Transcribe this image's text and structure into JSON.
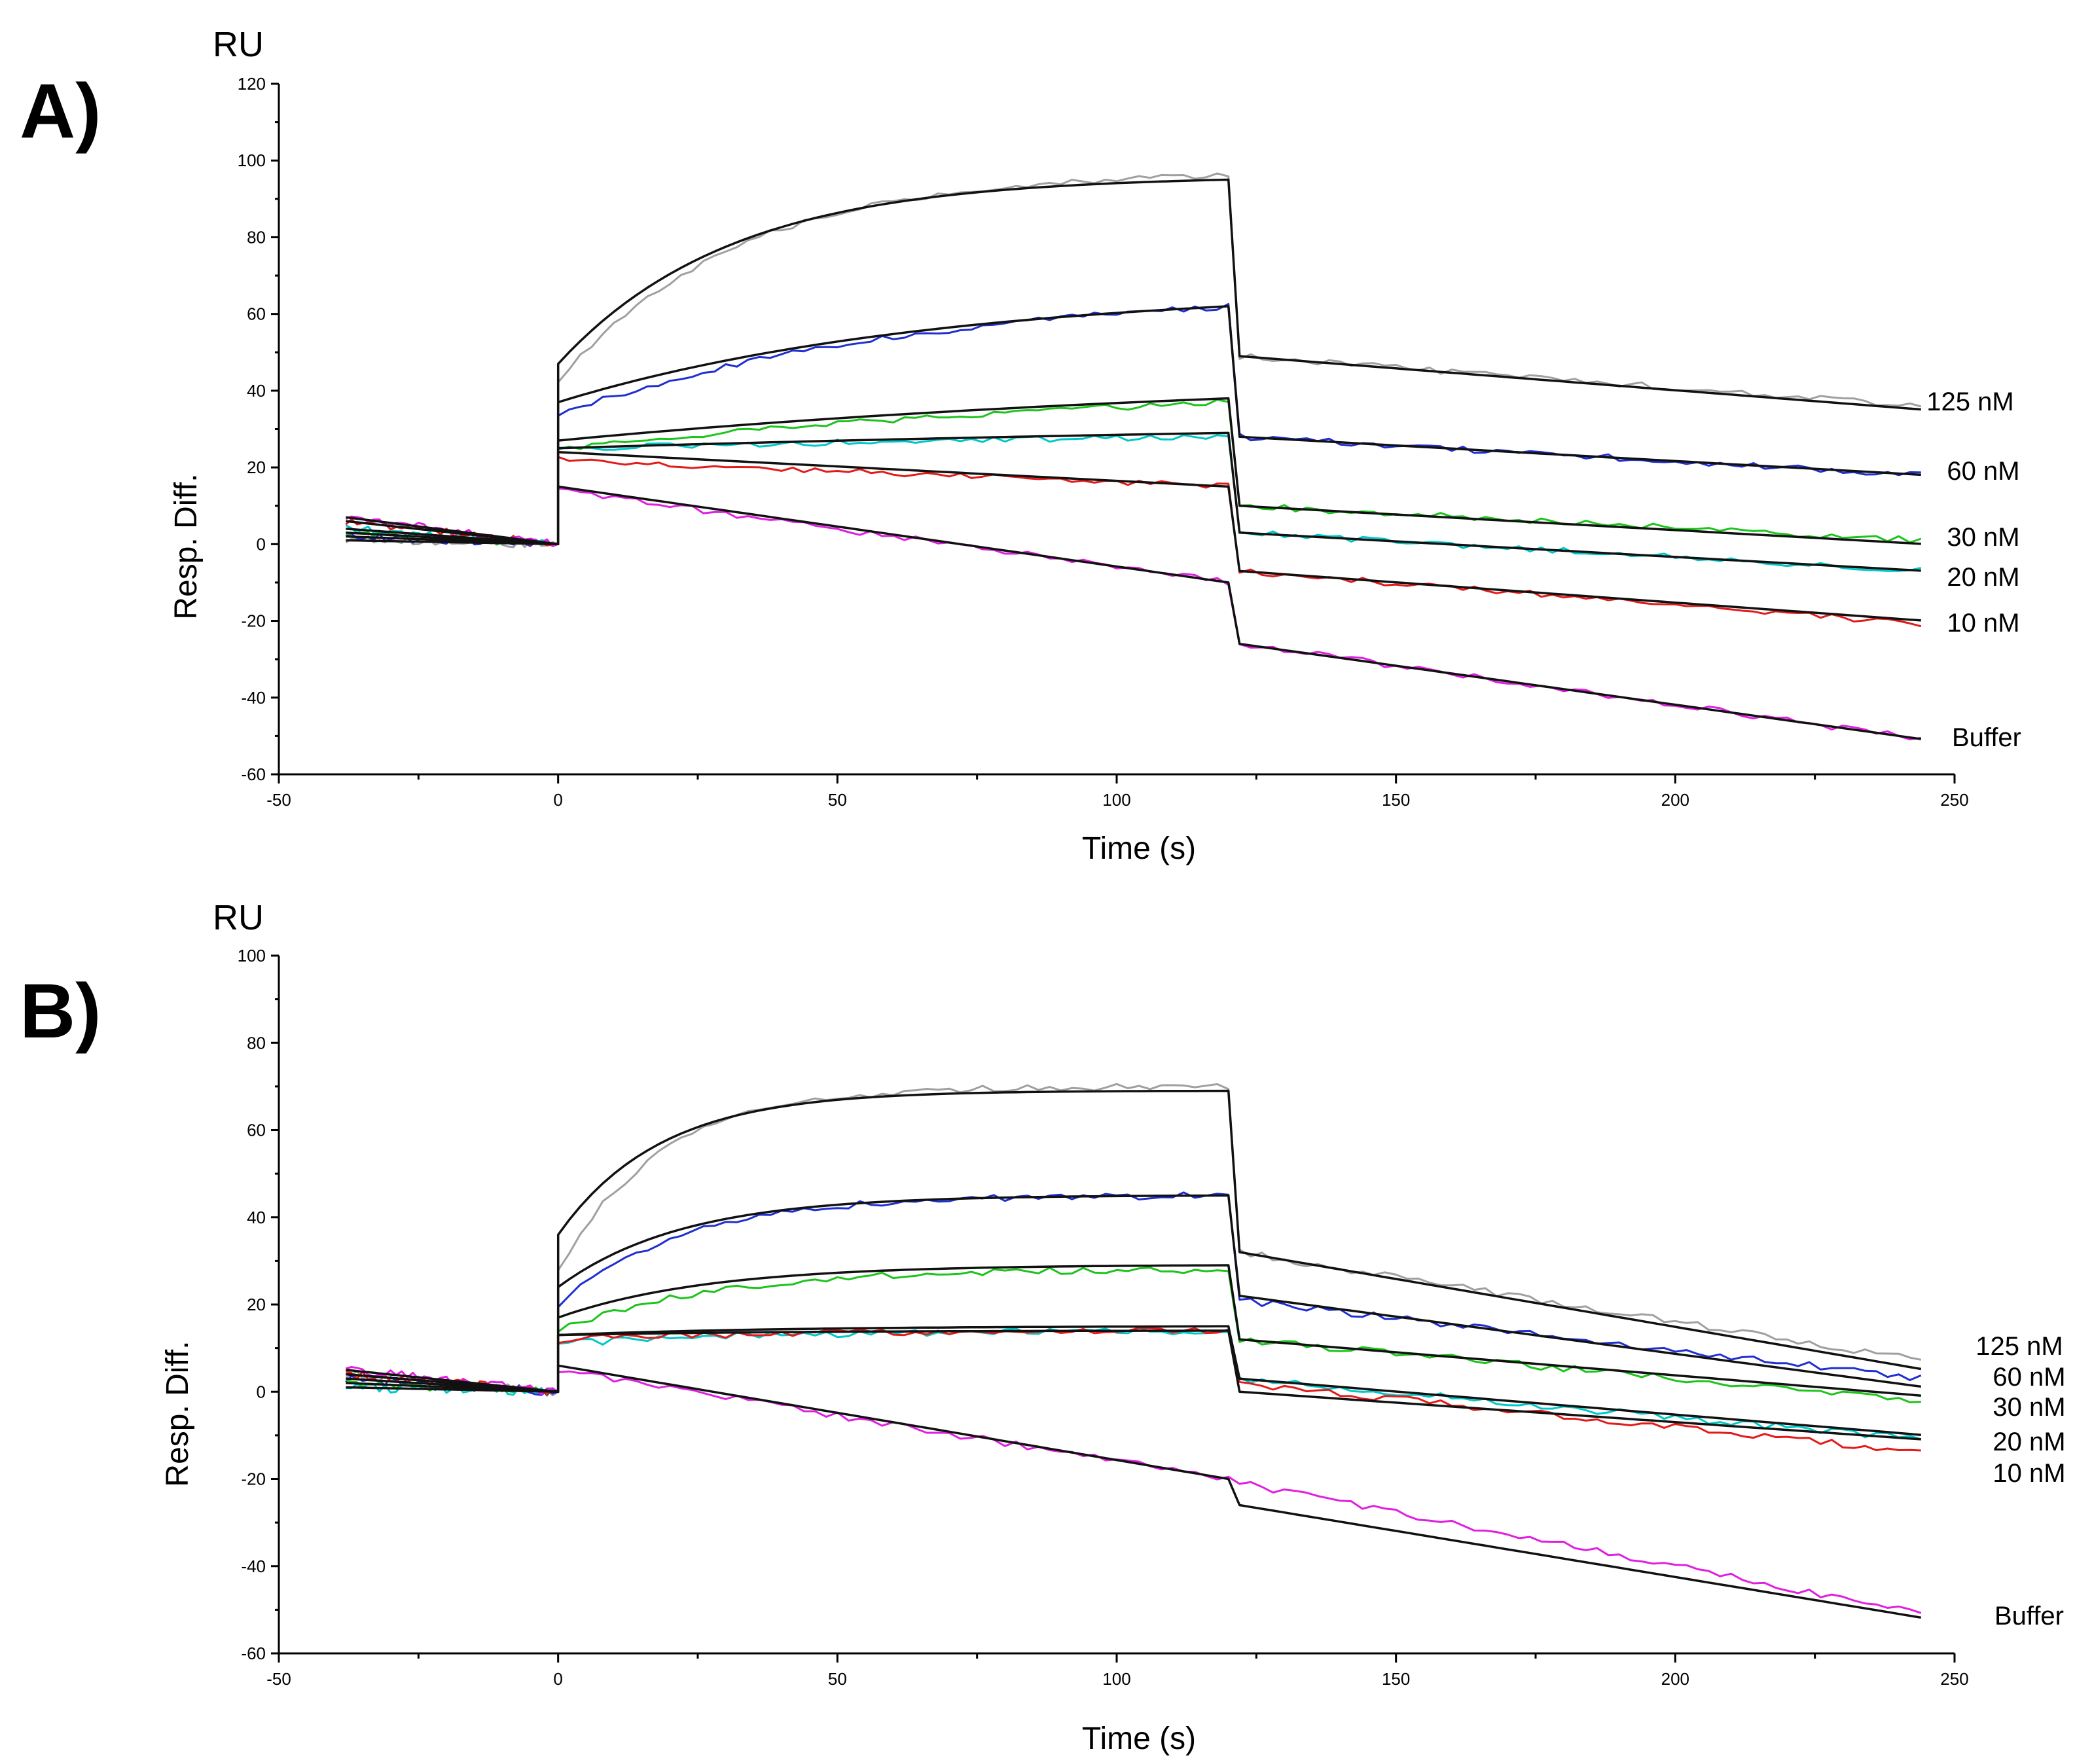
{
  "chart_data": [
    {
      "type": "line",
      "panel": "A)",
      "unit": "RU",
      "xlabel": "Time (s)",
      "ylabel": "Resp. Diff.",
      "xlim": [
        -50,
        250
      ],
      "ylim": [
        -60,
        120
      ],
      "xticks": [
        -50,
        0,
        50,
        100,
        150,
        200,
        250
      ],
      "yticks": [
        120,
        100,
        80,
        60,
        40,
        20,
        0,
        -20,
        -40,
        -60
      ],
      "injection_start": 0,
      "injection_end": 120,
      "series": [
        {
          "name": "125 nM",
          "color": "#a0a0a0",
          "baseline": 0,
          "data_jump": 42,
          "data_end": 96,
          "curve": 1.3,
          "dis_jump": 49,
          "dis_end": 36,
          "fit_jump": 47,
          "fit_end": 95,
          "fit_dis_start": 49,
          "fit_dis_end": 35,
          "pre_start": 1
        },
        {
          "name": "60 nM",
          "color": "#1f2fd0",
          "baseline": 0,
          "data_jump": 34,
          "data_end": 62,
          "curve": 0.6,
          "dis_jump": 28,
          "dis_end": 18,
          "fit_jump": 37,
          "fit_end": 62,
          "fit_dis_start": 28,
          "fit_dis_end": 18,
          "pre_start": 2
        },
        {
          "name": "30 nM",
          "color": "#1cc41c",
          "baseline": 0,
          "data_jump": 25,
          "data_end": 37,
          "curve": 0.3,
          "dis_jump": 10,
          "dis_end": 1,
          "fit_jump": 27,
          "fit_end": 38,
          "fit_dis_start": 10,
          "fit_dis_end": 0,
          "pre_start": 3
        },
        {
          "name": "20 nM",
          "color": "#00c8c8",
          "baseline": 0,
          "data_jump": 25,
          "data_end": 28,
          "curve": 0.2,
          "dis_jump": 3,
          "dis_end": -7,
          "fit_jump": 25,
          "fit_end": 29,
          "fit_dis_start": 3,
          "fit_dis_end": -7,
          "pre_start": 4
        },
        {
          "name": "10 nM",
          "color": "#e41a1a",
          "baseline": 0,
          "data_jump": 22,
          "data_end": 15,
          "curve": 0.0,
          "dis_jump": -7,
          "dis_end": -21,
          "fit_jump": 24,
          "fit_end": 15,
          "fit_dis_start": -7,
          "fit_dis_end": -20,
          "pre_start": 6
        },
        {
          "name": "Buffer",
          "color": "#e020e0",
          "baseline": 0,
          "data_jump": 14,
          "data_end": -10,
          "curve": 0.0,
          "dis_jump": -26,
          "dis_end": -51,
          "fit_jump": 15,
          "fit_end": -10,
          "fit_dis_start": -26,
          "fit_dis_end": -51,
          "pre_start": 7
        }
      ]
    },
    {
      "type": "line",
      "panel": "B)",
      "unit": "RU",
      "xlabel": "Time (s)",
      "ylabel": "Resp. Diff.",
      "xlim": [
        -50,
        250
      ],
      "ylim": [
        -60,
        100
      ],
      "xticks": [
        -50,
        0,
        50,
        100,
        150,
        200,
        250
      ],
      "yticks": [
        100,
        80,
        60,
        40,
        20,
        0,
        -20,
        -40,
        -60
      ],
      "injection_start": 0,
      "injection_end": 120,
      "series": [
        {
          "name": "125 nM",
          "color": "#a0a0a0",
          "baseline": 0,
          "data_jump": 28,
          "data_end": 70,
          "curve": 2.2,
          "dis_jump": 32,
          "dis_end": 7,
          "fit_jump": 36,
          "fit_end": 69,
          "fit_dis_start": 32,
          "fit_dis_end": 5,
          "pre_start": 4
        },
        {
          "name": "60 nM",
          "color": "#1f2fd0",
          "baseline": 0,
          "data_jump": 20,
          "data_end": 45,
          "curve": 1.8,
          "dis_jump": 21,
          "dis_end": 3,
          "fit_jump": 24,
          "fit_end": 45,
          "fit_dis_start": 22,
          "fit_dis_end": 1,
          "pre_start": 3
        },
        {
          "name": "30 nM",
          "color": "#1cc41c",
          "baseline": 0,
          "data_jump": 14,
          "data_end": 28,
          "curve": 1.5,
          "dis_jump": 12,
          "dis_end": -2,
          "fit_jump": 17,
          "fit_end": 29,
          "fit_dis_start": 12,
          "fit_dis_end": -1,
          "pre_start": 2
        },
        {
          "name": "20 nM",
          "color": "#00c8c8",
          "baseline": 0,
          "data_jump": 11,
          "data_end": 14,
          "curve": 1.0,
          "dis_jump": 3,
          "dis_end": -11,
          "fit_jump": 13,
          "fit_end": 15,
          "fit_dis_start": 3,
          "fit_dis_end": -10,
          "pre_start": 1
        },
        {
          "name": "10 nM",
          "color": "#e41a1a",
          "baseline": 0,
          "data_jump": 12,
          "data_end": 14,
          "curve": 1.0,
          "dis_jump": 2,
          "dis_end": -14,
          "fit_jump": 13,
          "fit_end": 14,
          "fit_dis_start": 0,
          "fit_dis_end": -11,
          "pre_start": 4
        },
        {
          "name": "Buffer",
          "color": "#e020e0",
          "baseline": 0,
          "data_jump": 5,
          "data_end": -20,
          "curve": 0.0,
          "dis_jump": -21,
          "dis_end": -51,
          "fit_jump": 6,
          "fit_end": -20,
          "fit_dis_start": -26,
          "fit_dis_end": -52,
          "pre_start": 5
        }
      ]
    }
  ]
}
